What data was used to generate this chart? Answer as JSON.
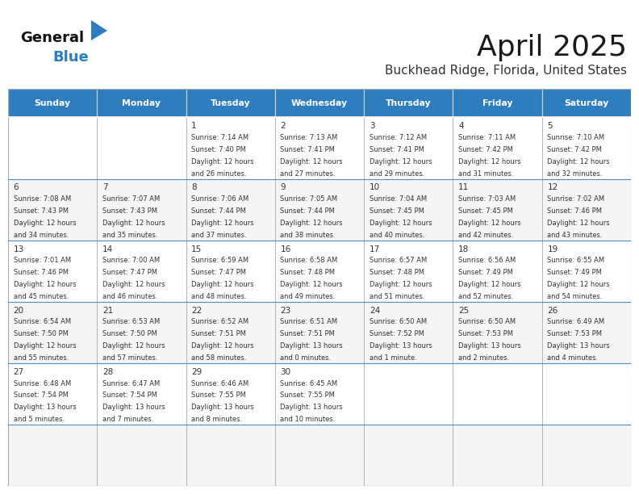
{
  "title": "April 2025",
  "subtitle": "Buckhead Ridge, Florida, United States",
  "header_bg": "#2E7EBF",
  "header_text_color": "#FFFFFF",
  "row_bg_1": "#FFFFFF",
  "row_bg_2": "#F5F5F5",
  "grid_color": "#AAAAAA",
  "row_divider_color": "#4A90C4",
  "text_color": "#333333",
  "logo_general_color": "#111111",
  "logo_blue_color": "#2E7EBF",
  "logo_triangle_color": "#2E7EBF",
  "day_names": [
    "Sunday",
    "Monday",
    "Tuesday",
    "Wednesday",
    "Thursday",
    "Friday",
    "Saturday"
  ],
  "days": [
    {
      "num": "",
      "sunrise": "",
      "sunset": "",
      "daylight1": "",
      "daylight2": ""
    },
    {
      "num": "",
      "sunrise": "",
      "sunset": "",
      "daylight1": "",
      "daylight2": ""
    },
    {
      "num": "1",
      "sunrise": "Sunrise: 7:14 AM",
      "sunset": "Sunset: 7:40 PM",
      "daylight1": "Daylight: 12 hours",
      "daylight2": "and 26 minutes."
    },
    {
      "num": "2",
      "sunrise": "Sunrise: 7:13 AM",
      "sunset": "Sunset: 7:41 PM",
      "daylight1": "Daylight: 12 hours",
      "daylight2": "and 27 minutes."
    },
    {
      "num": "3",
      "sunrise": "Sunrise: 7:12 AM",
      "sunset": "Sunset: 7:41 PM",
      "daylight1": "Daylight: 12 hours",
      "daylight2": "and 29 minutes."
    },
    {
      "num": "4",
      "sunrise": "Sunrise: 7:11 AM",
      "sunset": "Sunset: 7:42 PM",
      "daylight1": "Daylight: 12 hours",
      "daylight2": "and 31 minutes."
    },
    {
      "num": "5",
      "sunrise": "Sunrise: 7:10 AM",
      "sunset": "Sunset: 7:42 PM",
      "daylight1": "Daylight: 12 hours",
      "daylight2": "and 32 minutes."
    },
    {
      "num": "6",
      "sunrise": "Sunrise: 7:08 AM",
      "sunset": "Sunset: 7:43 PM",
      "daylight1": "Daylight: 12 hours",
      "daylight2": "and 34 minutes."
    },
    {
      "num": "7",
      "sunrise": "Sunrise: 7:07 AM",
      "sunset": "Sunset: 7:43 PM",
      "daylight1": "Daylight: 12 hours",
      "daylight2": "and 35 minutes."
    },
    {
      "num": "8",
      "sunrise": "Sunrise: 7:06 AM",
      "sunset": "Sunset: 7:44 PM",
      "daylight1": "Daylight: 12 hours",
      "daylight2": "and 37 minutes."
    },
    {
      "num": "9",
      "sunrise": "Sunrise: 7:05 AM",
      "sunset": "Sunset: 7:44 PM",
      "daylight1": "Daylight: 12 hours",
      "daylight2": "and 38 minutes."
    },
    {
      "num": "10",
      "sunrise": "Sunrise: 7:04 AM",
      "sunset": "Sunset: 7:45 PM",
      "daylight1": "Daylight: 12 hours",
      "daylight2": "and 40 minutes."
    },
    {
      "num": "11",
      "sunrise": "Sunrise: 7:03 AM",
      "sunset": "Sunset: 7:45 PM",
      "daylight1": "Daylight: 12 hours",
      "daylight2": "and 42 minutes."
    },
    {
      "num": "12",
      "sunrise": "Sunrise: 7:02 AM",
      "sunset": "Sunset: 7:46 PM",
      "daylight1": "Daylight: 12 hours",
      "daylight2": "and 43 minutes."
    },
    {
      "num": "13",
      "sunrise": "Sunrise: 7:01 AM",
      "sunset": "Sunset: 7:46 PM",
      "daylight1": "Daylight: 12 hours",
      "daylight2": "and 45 minutes."
    },
    {
      "num": "14",
      "sunrise": "Sunrise: 7:00 AM",
      "sunset": "Sunset: 7:47 PM",
      "daylight1": "Daylight: 12 hours",
      "daylight2": "and 46 minutes."
    },
    {
      "num": "15",
      "sunrise": "Sunrise: 6:59 AM",
      "sunset": "Sunset: 7:47 PM",
      "daylight1": "Daylight: 12 hours",
      "daylight2": "and 48 minutes."
    },
    {
      "num": "16",
      "sunrise": "Sunrise: 6:58 AM",
      "sunset": "Sunset: 7:48 PM",
      "daylight1": "Daylight: 12 hours",
      "daylight2": "and 49 minutes."
    },
    {
      "num": "17",
      "sunrise": "Sunrise: 6:57 AM",
      "sunset": "Sunset: 7:48 PM",
      "daylight1": "Daylight: 12 hours",
      "daylight2": "and 51 minutes."
    },
    {
      "num": "18",
      "sunrise": "Sunrise: 6:56 AM",
      "sunset": "Sunset: 7:49 PM",
      "daylight1": "Daylight: 12 hours",
      "daylight2": "and 52 minutes."
    },
    {
      "num": "19",
      "sunrise": "Sunrise: 6:55 AM",
      "sunset": "Sunset: 7:49 PM",
      "daylight1": "Daylight: 12 hours",
      "daylight2": "and 54 minutes."
    },
    {
      "num": "20",
      "sunrise": "Sunrise: 6:54 AM",
      "sunset": "Sunset: 7:50 PM",
      "daylight1": "Daylight: 12 hours",
      "daylight2": "and 55 minutes."
    },
    {
      "num": "21",
      "sunrise": "Sunrise: 6:53 AM",
      "sunset": "Sunset: 7:50 PM",
      "daylight1": "Daylight: 12 hours",
      "daylight2": "and 57 minutes."
    },
    {
      "num": "22",
      "sunrise": "Sunrise: 6:52 AM",
      "sunset": "Sunset: 7:51 PM",
      "daylight1": "Daylight: 12 hours",
      "daylight2": "and 58 minutes."
    },
    {
      "num": "23",
      "sunrise": "Sunrise: 6:51 AM",
      "sunset": "Sunset: 7:51 PM",
      "daylight1": "Daylight: 13 hours",
      "daylight2": "and 0 minutes."
    },
    {
      "num": "24",
      "sunrise": "Sunrise: 6:50 AM",
      "sunset": "Sunset: 7:52 PM",
      "daylight1": "Daylight: 13 hours",
      "daylight2": "and 1 minute."
    },
    {
      "num": "25",
      "sunrise": "Sunrise: 6:50 AM",
      "sunset": "Sunset: 7:53 PM",
      "daylight1": "Daylight: 13 hours",
      "daylight2": "and 2 minutes."
    },
    {
      "num": "26",
      "sunrise": "Sunrise: 6:49 AM",
      "sunset": "Sunset: 7:53 PM",
      "daylight1": "Daylight: 13 hours",
      "daylight2": "and 4 minutes."
    },
    {
      "num": "27",
      "sunrise": "Sunrise: 6:48 AM",
      "sunset": "Sunset: 7:54 PM",
      "daylight1": "Daylight: 13 hours",
      "daylight2": "and 5 minutes."
    },
    {
      "num": "28",
      "sunrise": "Sunrise: 6:47 AM",
      "sunset": "Sunset: 7:54 PM",
      "daylight1": "Daylight: 13 hours",
      "daylight2": "and 7 minutes."
    },
    {
      "num": "29",
      "sunrise": "Sunrise: 6:46 AM",
      "sunset": "Sunset: 7:55 PM",
      "daylight1": "Daylight: 13 hours",
      "daylight2": "and 8 minutes."
    },
    {
      "num": "30",
      "sunrise": "Sunrise: 6:45 AM",
      "sunset": "Sunset: 7:55 PM",
      "daylight1": "Daylight: 13 hours",
      "daylight2": "and 10 minutes."
    },
    {
      "num": "",
      "sunrise": "",
      "sunset": "",
      "daylight1": "",
      "daylight2": ""
    },
    {
      "num": "",
      "sunrise": "",
      "sunset": "",
      "daylight1": "",
      "daylight2": ""
    },
    {
      "num": "",
      "sunrise": "",
      "sunset": "",
      "daylight1": "",
      "daylight2": ""
    },
    {
      "num": "",
      "sunrise": "",
      "sunset": "",
      "daylight1": "",
      "daylight2": ""
    }
  ]
}
